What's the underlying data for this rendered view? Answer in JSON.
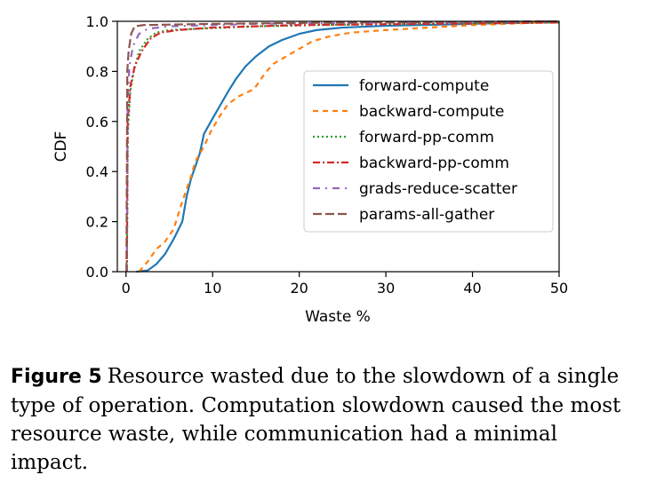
{
  "chart_data": {
    "type": "line",
    "xlabel": "Waste %",
    "ylabel": "CDF",
    "xlim": [
      -1,
      50
    ],
    "ylim": [
      0,
      1.0
    ],
    "xticks": [
      0,
      10,
      20,
      30,
      40,
      50
    ],
    "yticks": [
      0.0,
      0.2,
      0.4,
      0.6,
      0.8,
      1.0
    ],
    "xtick_labels": [
      "0",
      "10",
      "20",
      "30",
      "40",
      "50"
    ],
    "ytick_labels": [
      "0.0",
      "0.2",
      "0.4",
      "0.6",
      "0.8",
      "1.0"
    ],
    "grid": false,
    "legend_position": "center-right",
    "series": [
      {
        "name": "forward-compute",
        "color": "#1f77b4",
        "dash": "solid",
        "points": [
          [
            1.2,
            0
          ],
          [
            2.5,
            0.005
          ],
          [
            3.5,
            0.03
          ],
          [
            4.5,
            0.07
          ],
          [
            5.5,
            0.13
          ],
          [
            6.5,
            0.2
          ],
          [
            7.0,
            0.3
          ],
          [
            7.5,
            0.37
          ],
          [
            8.0,
            0.42
          ],
          [
            8.5,
            0.47
          ],
          [
            9.0,
            0.55
          ],
          [
            9.8,
            0.6
          ],
          [
            10.8,
            0.66
          ],
          [
            11.8,
            0.72
          ],
          [
            12.7,
            0.77
          ],
          [
            13.8,
            0.82
          ],
          [
            15.0,
            0.86
          ],
          [
            16.5,
            0.9
          ],
          [
            18.0,
            0.925
          ],
          [
            20.0,
            0.95
          ],
          [
            22.0,
            0.965
          ],
          [
            25.0,
            0.975
          ],
          [
            30.0,
            0.982
          ],
          [
            40.0,
            0.99
          ],
          [
            50.0,
            0.997
          ]
        ]
      },
      {
        "name": "backward-compute",
        "color": "#ff7f0e",
        "dash": "6,5",
        "points": [
          [
            1.5,
            0
          ],
          [
            2.5,
            0.04
          ],
          [
            3.5,
            0.09
          ],
          [
            4.5,
            0.12
          ],
          [
            5.5,
            0.17
          ],
          [
            6.5,
            0.28
          ],
          [
            7.0,
            0.33
          ],
          [
            7.5,
            0.38
          ],
          [
            8.0,
            0.44
          ],
          [
            9.0,
            0.5
          ],
          [
            9.8,
            0.56
          ],
          [
            10.8,
            0.62
          ],
          [
            11.8,
            0.67
          ],
          [
            13.0,
            0.7
          ],
          [
            14.8,
            0.73
          ],
          [
            16.0,
            0.79
          ],
          [
            17.0,
            0.83
          ],
          [
            18.5,
            0.86
          ],
          [
            20.0,
            0.89
          ],
          [
            21.5,
            0.92
          ],
          [
            23.5,
            0.94
          ],
          [
            26.0,
            0.955
          ],
          [
            30.0,
            0.965
          ],
          [
            35.0,
            0.975
          ],
          [
            40.0,
            0.985
          ],
          [
            50.0,
            0.998
          ]
        ]
      },
      {
        "name": "forward-pp-comm",
        "color": "#2ca02c",
        "dash": "2,3",
        "points": [
          [
            0.1,
            0
          ],
          [
            0.2,
            0.55
          ],
          [
            0.5,
            0.72
          ],
          [
            0.9,
            0.8
          ],
          [
            1.5,
            0.88
          ],
          [
            2.5,
            0.93
          ],
          [
            3.5,
            0.955
          ],
          [
            5.0,
            0.965
          ],
          [
            8.0,
            0.97
          ],
          [
            15.0,
            0.98
          ],
          [
            30.0,
            0.99
          ],
          [
            50.0,
            0.995
          ]
        ]
      },
      {
        "name": "backward-pp-comm",
        "color": "#d62728",
        "dash": "8,3,2,3",
        "points": [
          [
            0.1,
            0
          ],
          [
            0.2,
            0.6
          ],
          [
            0.5,
            0.74
          ],
          [
            1.0,
            0.82
          ],
          [
            1.8,
            0.88
          ],
          [
            2.8,
            0.93
          ],
          [
            4.0,
            0.955
          ],
          [
            6.0,
            0.965
          ],
          [
            10.0,
            0.975
          ],
          [
            20.0,
            0.985
          ],
          [
            35.0,
            0.99
          ],
          [
            50.0,
            0.995
          ]
        ]
      },
      {
        "name": "grads-reduce-scatter",
        "color": "#9467bd",
        "dash": "8,6,2,6",
        "points": [
          [
            0.1,
            0
          ],
          [
            0.2,
            0.7
          ],
          [
            0.4,
            0.82
          ],
          [
            0.8,
            0.9
          ],
          [
            1.5,
            0.95
          ],
          [
            2.5,
            0.97
          ],
          [
            5.0,
            0.98
          ],
          [
            15.0,
            0.99
          ],
          [
            30.0,
            0.995
          ],
          [
            50.0,
            1.0
          ]
        ]
      },
      {
        "name": "params-all-gather",
        "color": "#8c564b",
        "dash": "10,4",
        "points": [
          [
            0.05,
            0
          ],
          [
            0.15,
            0.8
          ],
          [
            0.3,
            0.88
          ],
          [
            0.6,
            0.95
          ],
          [
            1.0,
            0.98
          ],
          [
            2.0,
            0.985
          ],
          [
            10.0,
            0.99
          ],
          [
            25.0,
            0.995
          ],
          [
            50.0,
            1.0
          ]
        ]
      }
    ]
  },
  "caption": {
    "label": "Figure 5",
    "text": "Resource wasted due to the slowdown of a single type of operation.  Computation slowdown caused the most resource waste, while communication had a minimal impact."
  }
}
